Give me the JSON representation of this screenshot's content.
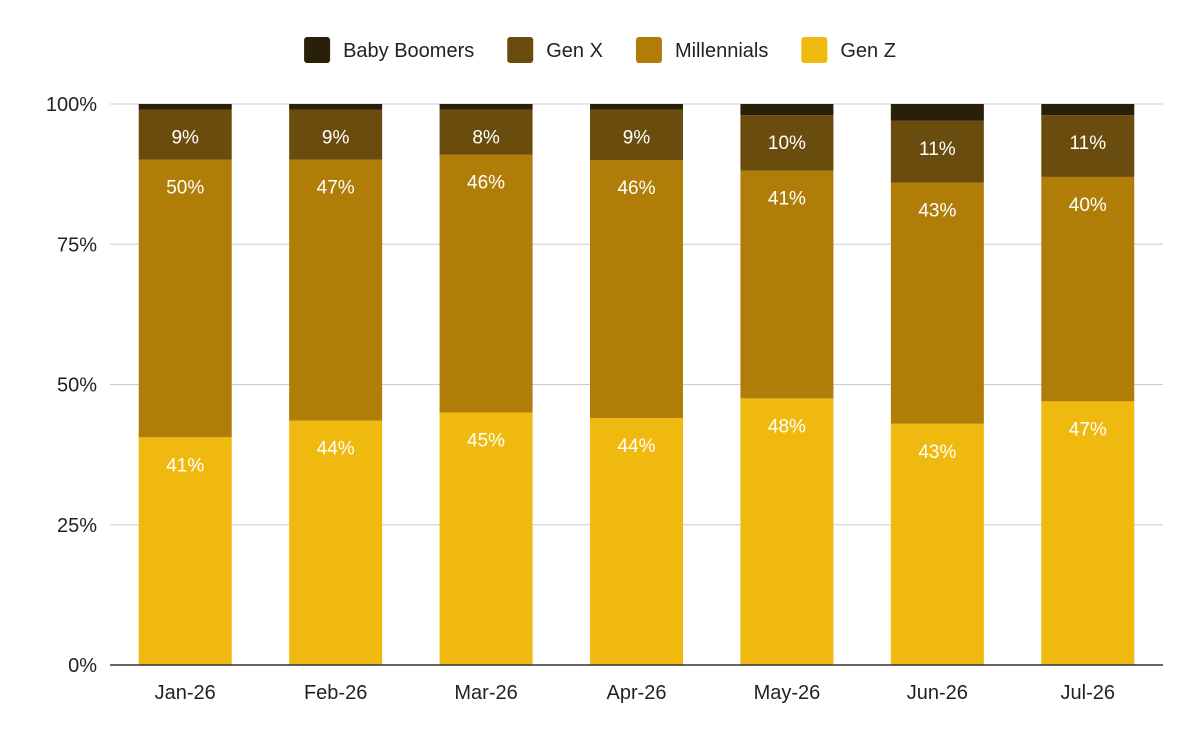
{
  "chart_data": {
    "type": "bar",
    "stacked": true,
    "percent_stacked": true,
    "title": "",
    "xlabel": "",
    "ylabel": "",
    "categories": [
      "Jan-26",
      "Feb-26",
      "Mar-26",
      "Apr-26",
      "May-26",
      "Jun-26",
      "Jul-26"
    ],
    "series": [
      {
        "name": "Gen Z",
        "color": "#f0b90f",
        "values": [
          41,
          44,
          45,
          44,
          48,
          43,
          47
        ],
        "labels": [
          "41%",
          "44%",
          "45%",
          "44%",
          "48%",
          "43%",
          "47%"
        ]
      },
      {
        "name": "Millennials",
        "color": "#b07e08",
        "values": [
          50,
          47,
          46,
          46,
          41,
          43,
          40
        ],
        "labels": [
          "50%",
          "47%",
          "46%",
          "46%",
          "41%",
          "43%",
          "40%"
        ]
      },
      {
        "name": "Gen X",
        "color": "#6b4c0f",
        "values": [
          9,
          9,
          8,
          9,
          10,
          11,
          11
        ],
        "labels": [
          "9%",
          "9%",
          "8%",
          "9%",
          "10%",
          "11%",
          "11%"
        ]
      },
      {
        "name": "Baby Boomers",
        "color": "#2a1f08",
        "values": [
          1,
          1,
          1,
          1,
          2,
          3,
          2
        ],
        "labels": [
          "",
          "",
          "",
          "",
          "",
          "",
          ""
        ]
      }
    ],
    "legend_order": [
      "Baby Boomers",
      "Gen X",
      "Millennials",
      "Gen Z"
    ],
    "legend_position": "top",
    "ylim": [
      0,
      100
    ],
    "yticks": [
      "0%",
      "25%",
      "50%",
      "75%",
      "100%"
    ],
    "ytick_values": [
      0,
      25,
      50,
      75,
      100
    ],
    "grid": true
  }
}
